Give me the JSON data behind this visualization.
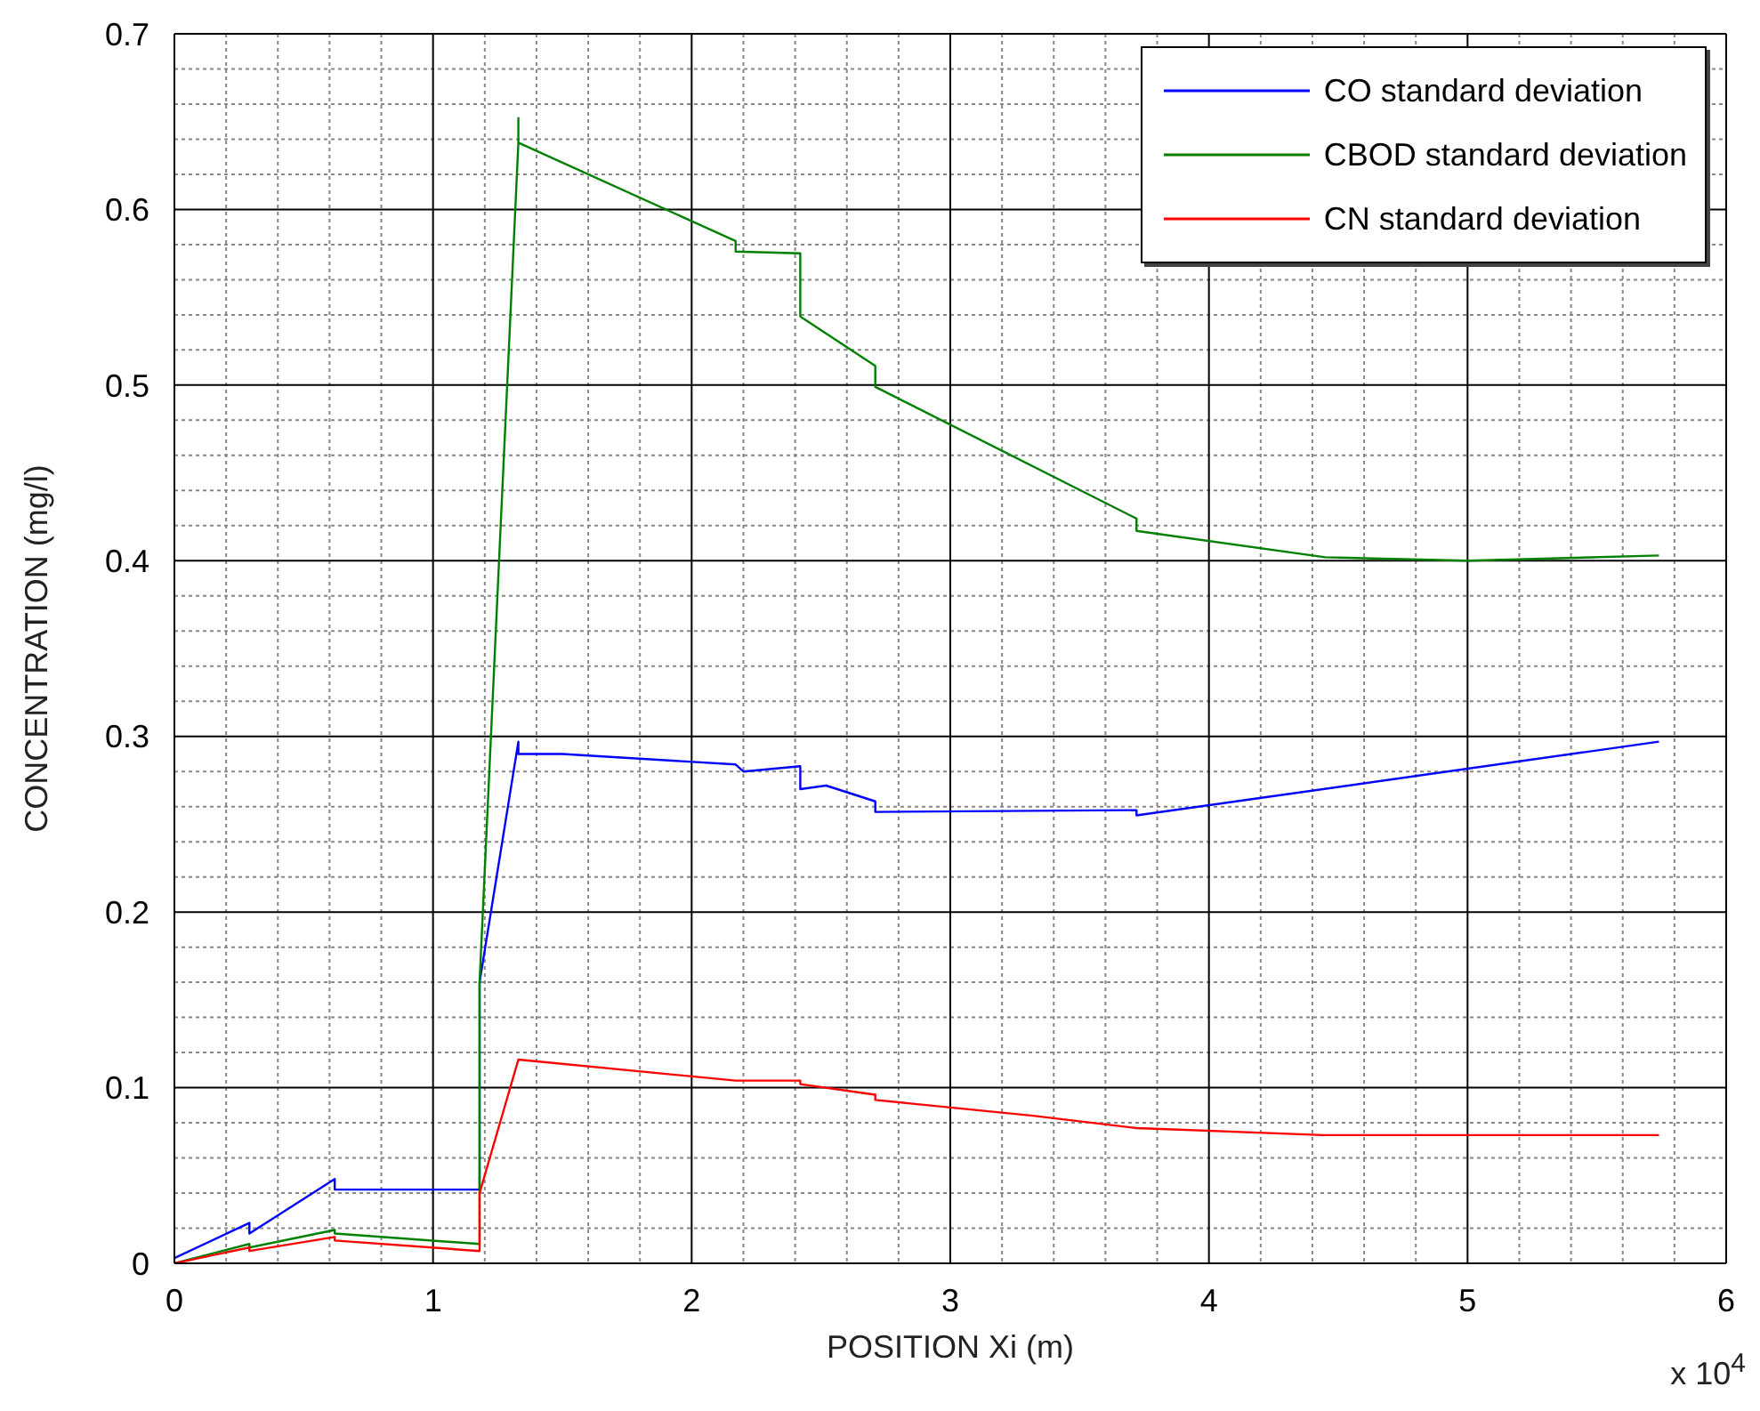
{
  "chart_data": {
    "type": "line",
    "xlabel": "POSITION Xi (m)",
    "ylabel": "CONCENTRATION (mg/l)",
    "annotations": [
      "x 10$^{4}$"
    ],
    "xlim": [
      0,
      6
    ],
    "xticks": [
      0,
      1,
      2,
      3,
      4,
      5,
      6
    ],
    "ylim": [
      0,
      0.7
    ],
    "yticks": [
      0,
      0.1,
      0.2,
      0.3,
      0.4,
      0.5,
      0.6,
      0.7
    ],
    "grid": true,
    "legend": "top right",
    "marker": "none",
    "line_style": "solid",
    "series": [
      {
        "name": "CO standard deviation",
        "color": "#0000ff",
        "x": [
          0,
          0.29,
          0.29,
          0.62,
          0.62,
          1.18,
          1.18,
          1.33,
          1.33,
          1.5,
          2.17,
          2.2,
          2.42,
          2.42,
          2.52,
          2.71,
          2.71,
          3.72,
          3.72,
          5.74
        ],
        "values": [
          0.003,
          0.023,
          0.017,
          0.048,
          0.042,
          0.042,
          0.16,
          0.297,
          0.29,
          0.29,
          0.284,
          0.28,
          0.283,
          0.27,
          0.272,
          0.263,
          0.257,
          0.258,
          0.255,
          0.297
        ]
      },
      {
        "name": "CBOD standard deviation",
        "color": "#008000",
        "x": [
          0,
          0.29,
          0.29,
          0.62,
          0.62,
          1.18,
          1.18,
          1.33,
          1.33,
          1.33,
          2.17,
          2.17,
          2.42,
          2.42,
          2.71,
          2.71,
          3.72,
          3.72,
          4.45,
          5,
          5.74
        ],
        "values": [
          0,
          0.011,
          0.009,
          0.019,
          0.017,
          0.011,
          0.16,
          0.638,
          0.652,
          0.638,
          0.582,
          0.576,
          0.575,
          0.539,
          0.511,
          0.499,
          0.424,
          0.417,
          0.402,
          0.4,
          0.403
        ]
      },
      {
        "name": "CN standard deviation",
        "color": "#ff0000",
        "x": [
          0,
          0.29,
          0.29,
          0.62,
          0.62,
          1.18,
          1.18,
          1.33,
          2.17,
          2.42,
          2.42,
          2.71,
          2.71,
          3.32,
          3.72,
          4.44,
          5.74
        ],
        "values": [
          0,
          0.009,
          0.007,
          0.015,
          0.013,
          0.007,
          0.04,
          0.116,
          0.104,
          0.104,
          0.102,
          0.096,
          0.093,
          0.084,
          0.077,
          0.073,
          0.073
        ]
      }
    ]
  }
}
